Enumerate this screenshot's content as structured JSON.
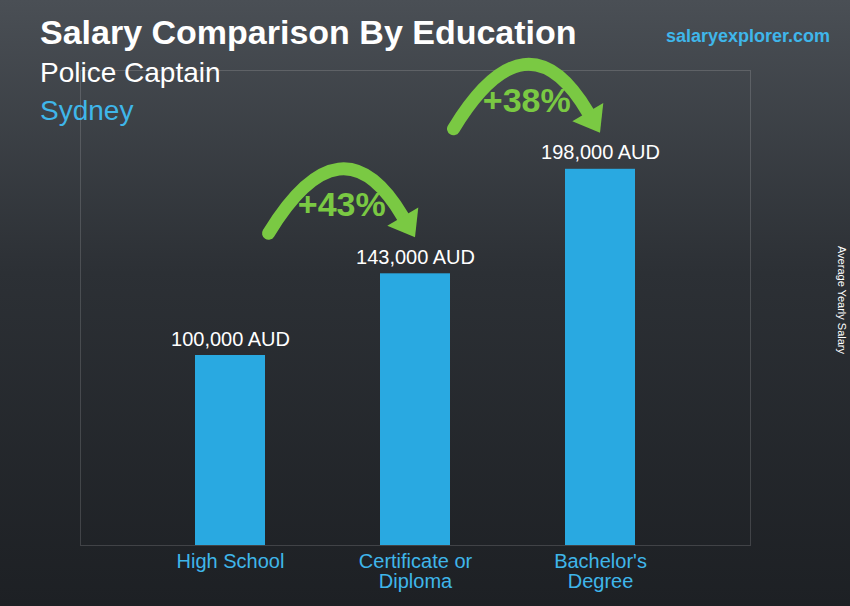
{
  "chart_data": {
    "type": "bar",
    "title": "Salary Comparison By Education",
    "subtitle": [
      "Police Captain",
      "Sydney"
    ],
    "source": "salaryexplorer.com",
    "ylabel": "Average Yearly Salary",
    "categories": [
      "High School",
      "Certificate or Diploma",
      "Bachelor's Degree"
    ],
    "values": [
      100000,
      143000,
      198000
    ],
    "value_labels": [
      "100,000 AUD",
      "143,000 AUD",
      "198,000 AUD"
    ],
    "data_labels": true,
    "color": "#29a9e1",
    "ylim": [
      0,
      250000
    ],
    "yticks": [],
    "tick_labels": "x",
    "grid": false,
    "annotations": [
      {
        "text": "+43%",
        "from": "High School",
        "to": "Certificate or Diploma"
      },
      {
        "text": "+38%",
        "from": "Certificate or Diploma",
        "to": "Bachelor's Degree"
      }
    ]
  }
}
